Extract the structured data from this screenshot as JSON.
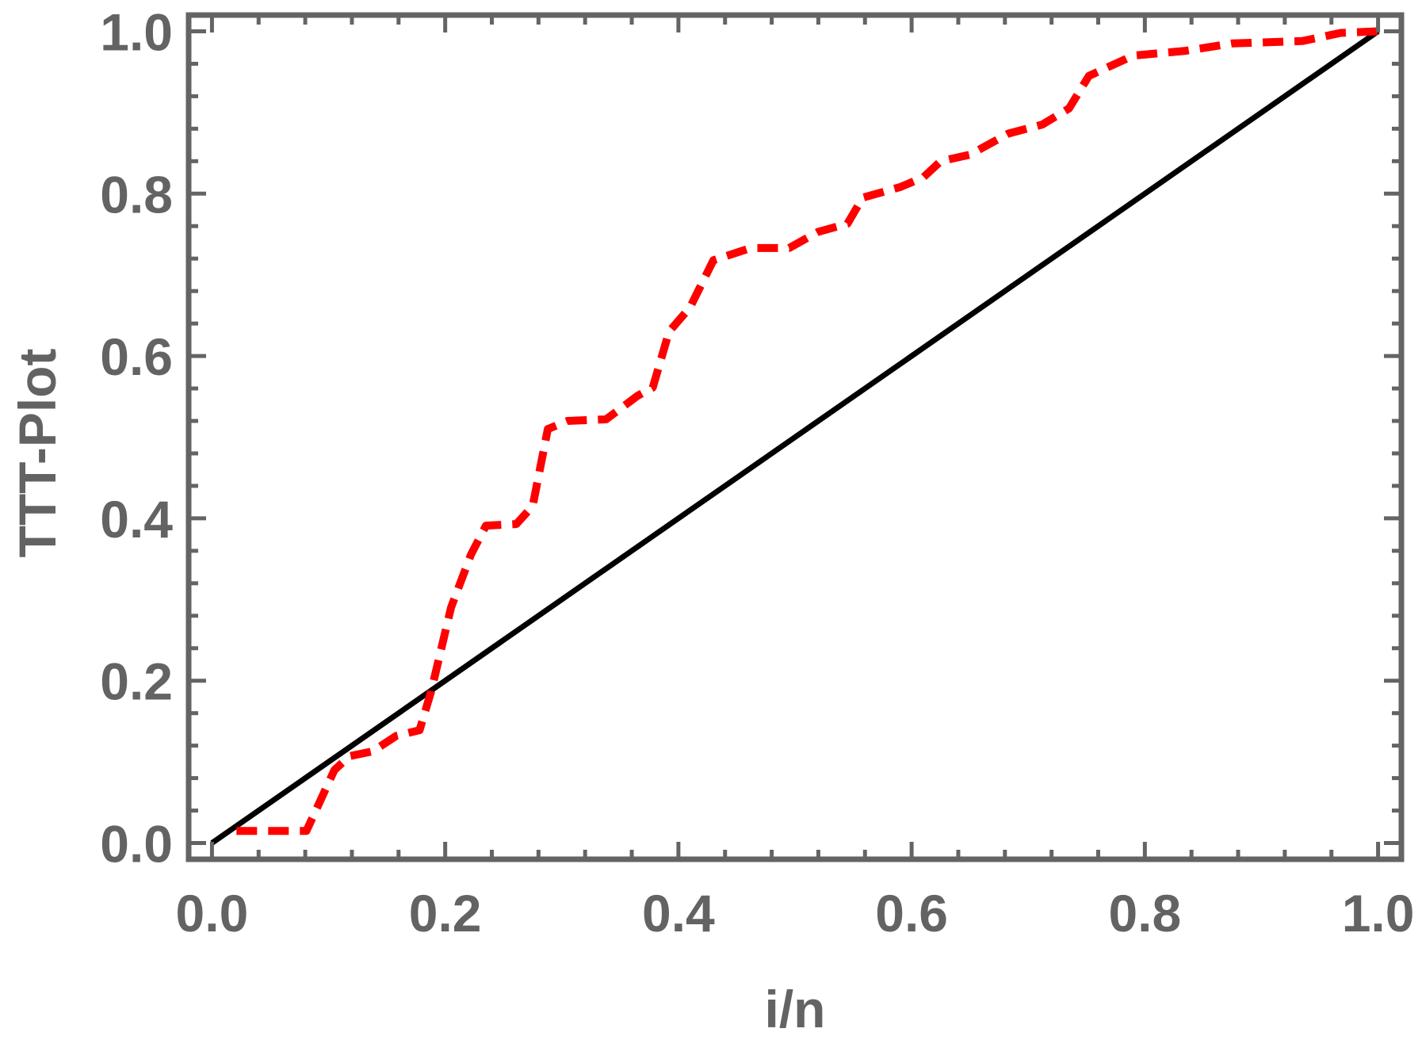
{
  "chart_data": {
    "type": "line",
    "xlabel": "i/n",
    "ylabel": "TTT-Plot",
    "xlim": [
      -0.02,
      1.02
    ],
    "ylim": [
      -0.02,
      1.02
    ],
    "x_ticks": [
      "0.0",
      "0.2",
      "0.4",
      "0.6",
      "0.8",
      "1.0"
    ],
    "y_ticks": [
      "0.0",
      "0.2",
      "0.4",
      "0.6",
      "0.8",
      "1.0"
    ],
    "frame_color": "#646464",
    "grid": false,
    "series": [
      {
        "style": "solid",
        "color": "#000000",
        "points": [
          [
            0.0,
            0.0
          ],
          [
            1.0,
            1.0
          ]
        ]
      },
      {
        "style": "dashed",
        "color": "#ff0000",
        "points": [
          [
            0.021,
            0.015
          ],
          [
            0.081,
            0.015
          ],
          [
            0.105,
            0.09
          ],
          [
            0.118,
            0.107
          ],
          [
            0.138,
            0.113
          ],
          [
            0.158,
            0.132
          ],
          [
            0.178,
            0.139
          ],
          [
            0.188,
            0.187
          ],
          [
            0.205,
            0.29
          ],
          [
            0.222,
            0.355
          ],
          [
            0.235,
            0.391
          ],
          [
            0.261,
            0.393
          ],
          [
            0.275,
            0.415
          ],
          [
            0.288,
            0.51
          ],
          [
            0.305,
            0.52
          ],
          [
            0.338,
            0.522
          ],
          [
            0.365,
            0.551
          ],
          [
            0.378,
            0.561
          ],
          [
            0.392,
            0.63
          ],
          [
            0.41,
            0.66
          ],
          [
            0.43,
            0.718
          ],
          [
            0.462,
            0.733
          ],
          [
            0.495,
            0.733
          ],
          [
            0.52,
            0.753
          ],
          [
            0.545,
            0.763
          ],
          [
            0.558,
            0.795
          ],
          [
            0.59,
            0.808
          ],
          [
            0.61,
            0.82
          ],
          [
            0.625,
            0.84
          ],
          [
            0.65,
            0.848
          ],
          [
            0.683,
            0.874
          ],
          [
            0.712,
            0.885
          ],
          [
            0.735,
            0.905
          ],
          [
            0.752,
            0.945
          ],
          [
            0.79,
            0.97
          ],
          [
            0.835,
            0.976
          ],
          [
            0.875,
            0.985
          ],
          [
            0.935,
            0.988
          ],
          [
            0.968,
            0.998
          ],
          [
            1.0,
            1.0
          ]
        ]
      }
    ]
  }
}
